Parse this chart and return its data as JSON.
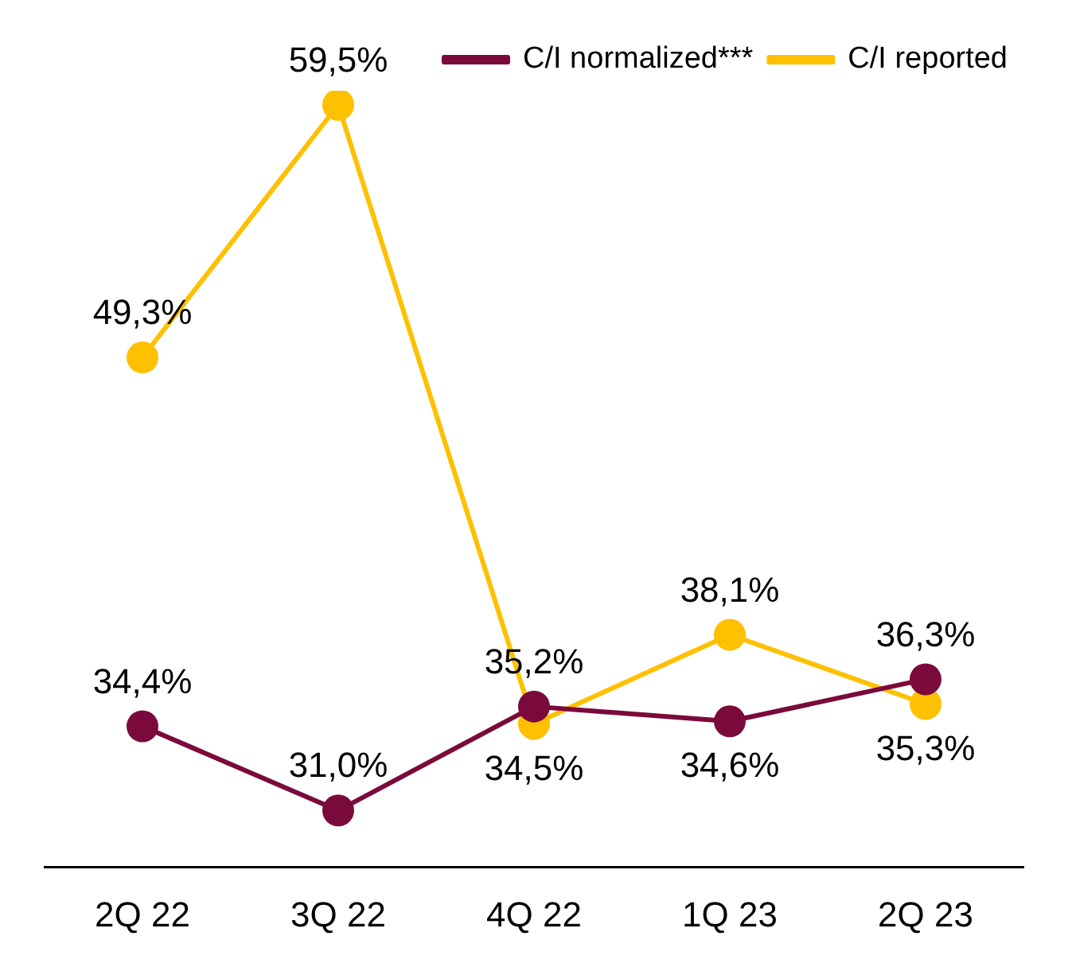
{
  "chart_data": {
    "type": "line",
    "categories": [
      "2Q 22",
      "3Q 22",
      "4Q 22",
      "1Q 23",
      "2Q 23"
    ],
    "series": [
      {
        "name": "C/I normalized***",
        "color": "#7b0a3c",
        "values": [
          34.4,
          31.0,
          35.2,
          34.6,
          36.3
        ],
        "value_labels": [
          "34,4%",
          "31,0%",
          "35,2%",
          "34,6%",
          "36,3%"
        ]
      },
      {
        "name": "C/I reported",
        "color": "#ffc000",
        "values": [
          49.3,
          59.5,
          34.5,
          38.1,
          35.3
        ],
        "value_labels": [
          "49,3%",
          "59,5%",
          "34,5%",
          "38,1%",
          "35,3%"
        ]
      }
    ],
    "legend": "top right",
    "marker": "circle",
    "line_style": "solid",
    "grid": false
  }
}
